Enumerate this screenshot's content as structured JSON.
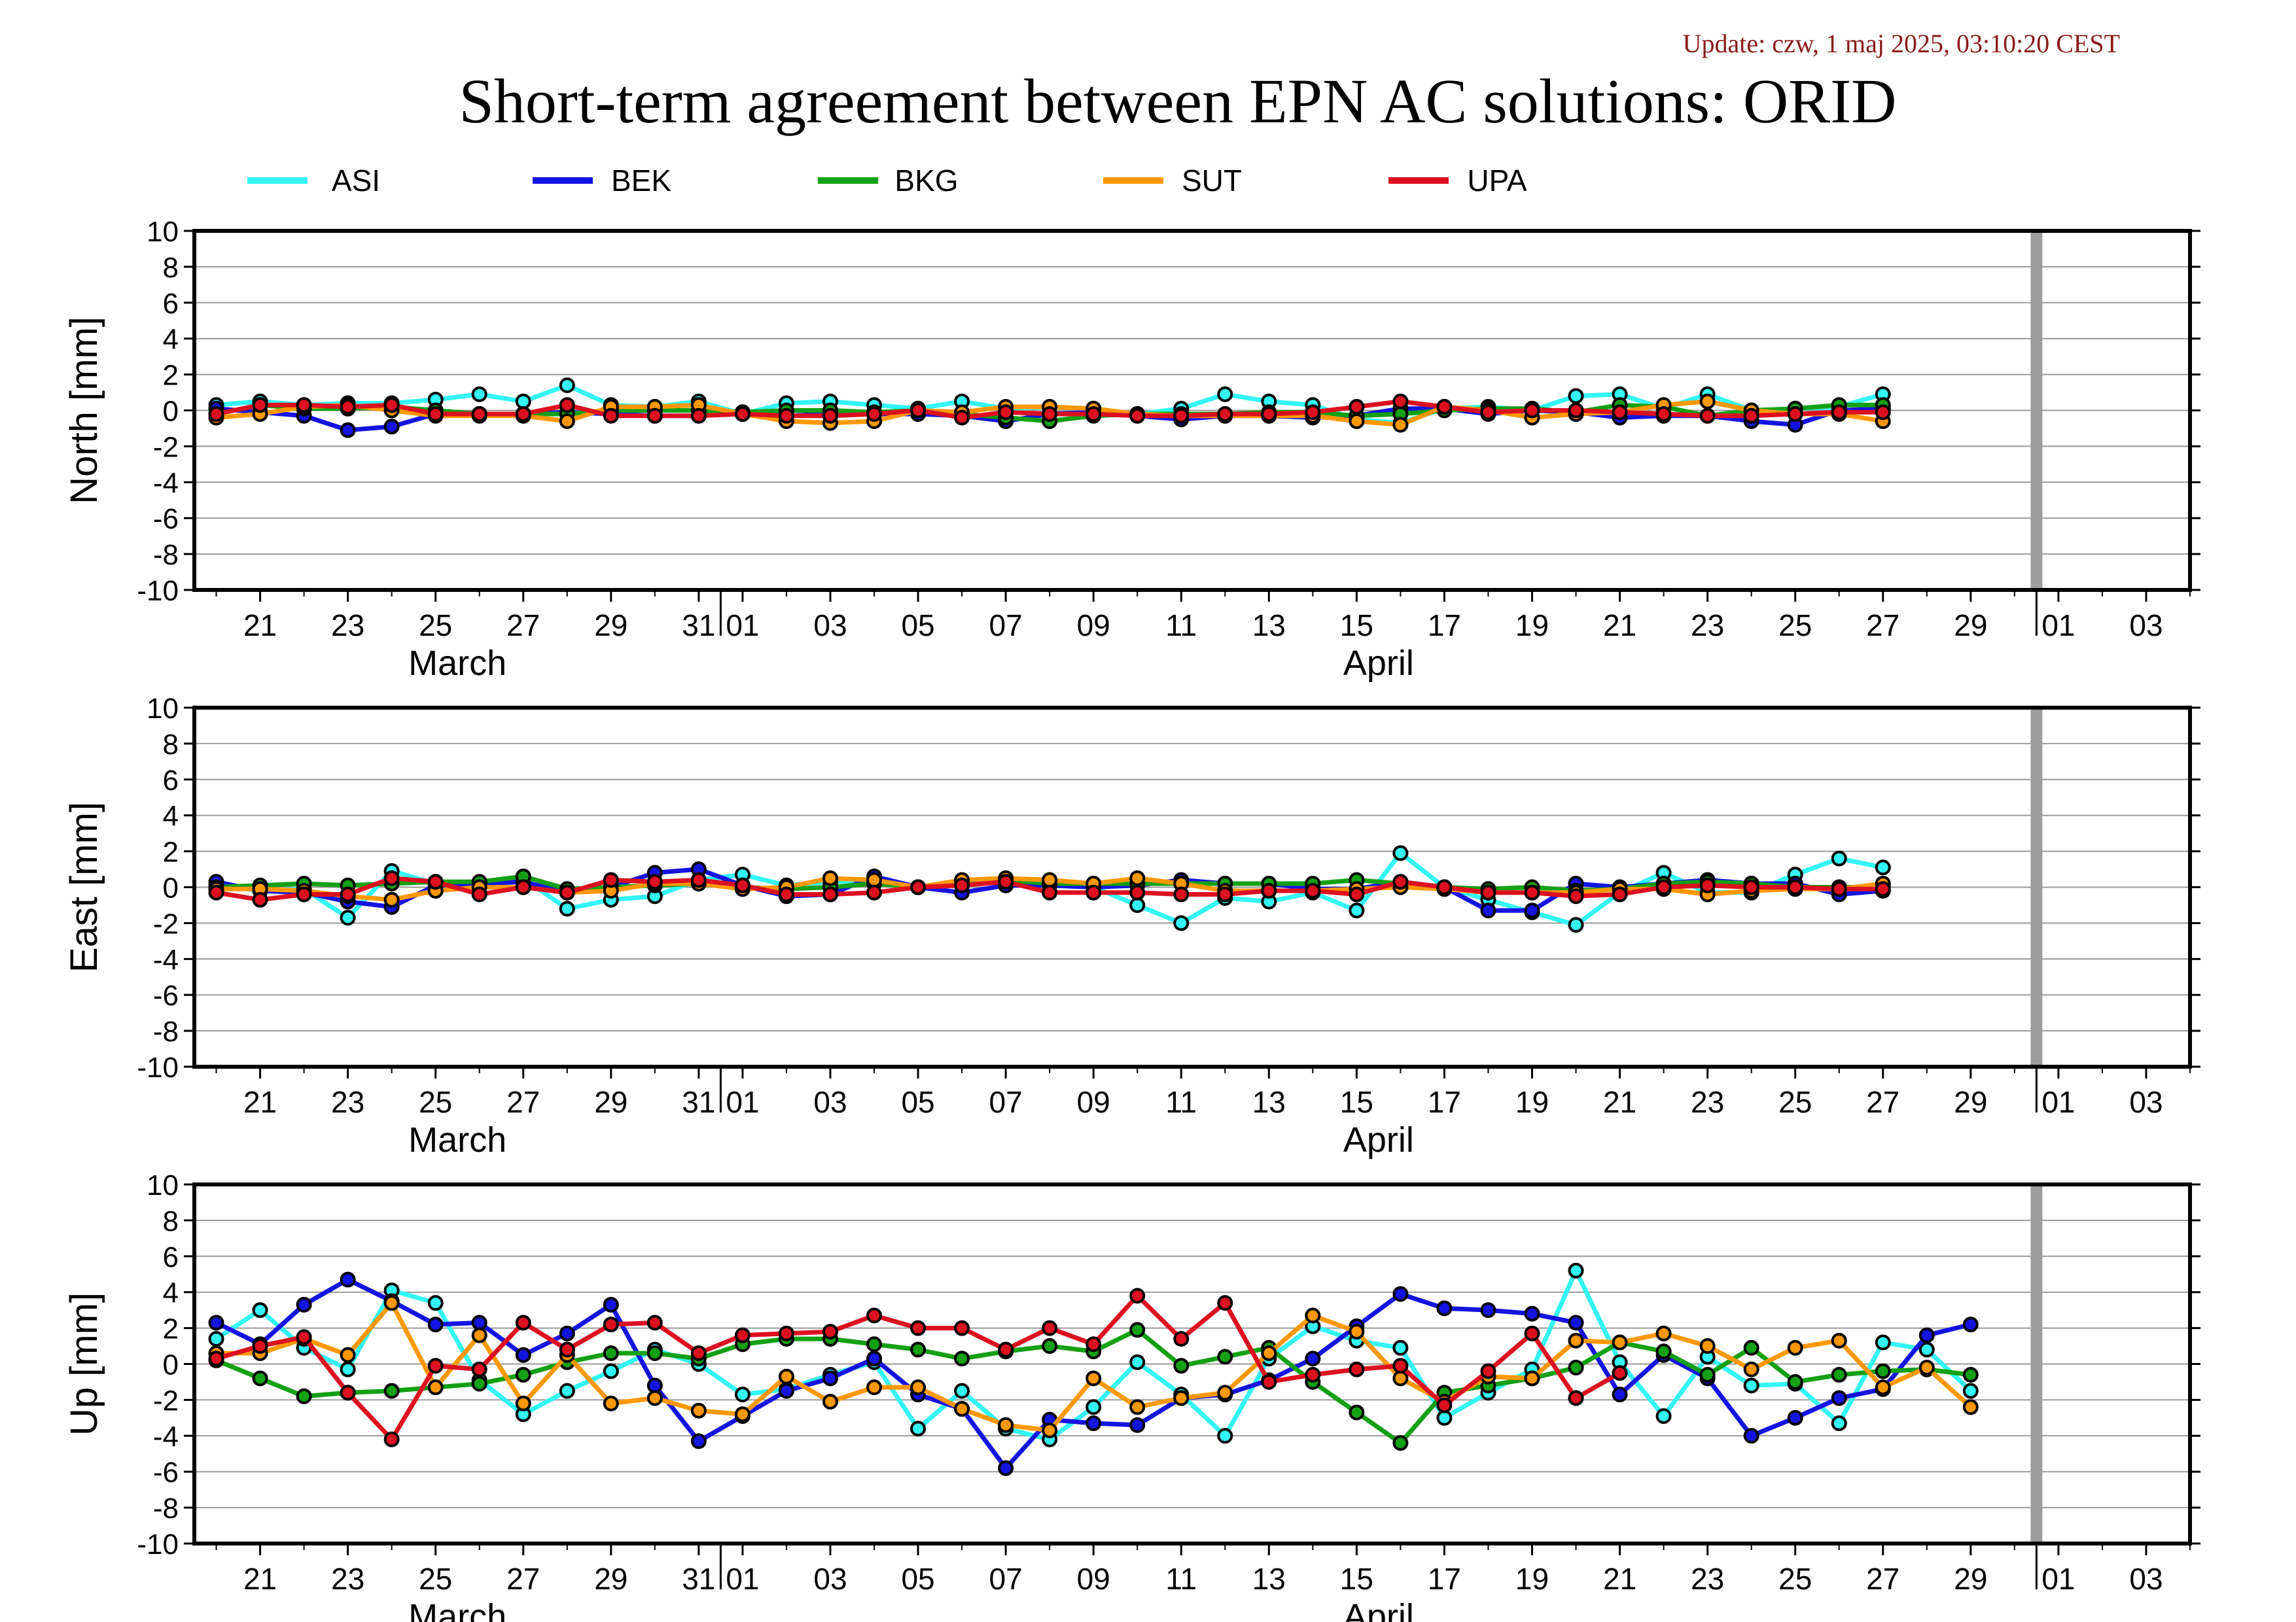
{
  "header": {
    "update": "Update: czw, 1 maj 2025, 03:10:20 CEST",
    "title": "Short-term agreement between EPN AC solutions: ORID"
  },
  "colors": {
    "ASI": "#33f5f5",
    "BEK": "#1414e0",
    "BKG": "#14a014",
    "SUT": "#ff9800",
    "UPA": "#dc1020",
    "update_text": "#8b1a1a",
    "marker_edge": "#000000",
    "today_marker": "#9e9e9e"
  },
  "legend": [
    {
      "name": "ASI",
      "color": "#33f5f5"
    },
    {
      "name": "BEK",
      "color": "#1414e0"
    },
    {
      "name": "BKG",
      "color": "#14a014"
    },
    {
      "name": "SUT",
      "color": "#ff9800"
    },
    {
      "name": "UPA",
      "color": "#dc1020"
    }
  ],
  "chart_data": [
    {
      "type": "line",
      "ylabel": "North [mm]",
      "ylim": [
        -10,
        10
      ],
      "yticks": [
        10,
        8,
        6,
        4,
        2,
        0,
        -2,
        -4,
        -6,
        -8,
        -10
      ],
      "xlim": [
        "2025-03-19T12:00",
        "2025-05-04T00:00"
      ],
      "x_tick_labels": [
        "21",
        "23",
        "25",
        "27",
        "29",
        "31",
        "01",
        "03",
        "05",
        "07",
        "09",
        "11",
        "13",
        "15",
        "17",
        "19",
        "21",
        "23",
        "25",
        "27",
        "29",
        "01",
        "03"
      ],
      "month_labels": [
        "March",
        "April"
      ],
      "today_marker": "2025-04-30",
      "grid": true,
      "series": [
        {
          "name": "ASI",
          "x_start": "2025-03-20",
          "values": [
            0.3,
            0.5,
            0.3,
            0.4,
            0.4,
            0.6,
            0.9,
            0.5,
            1.4,
            0.3,
            0.2,
            0.5,
            -0.2,
            0.4,
            0.5,
            0.3,
            0.1,
            0.5,
            0.1,
            0.2,
            0.1,
            -0.2,
            0.1,
            0.9,
            0.5,
            0.3,
            -0.5,
            -0.7,
            0.1,
            0.2,
            0.0,
            0.8,
            0.9,
            0.1,
            0.9,
            0.0,
            0.1,
            0.2,
            0.9
          ]
        },
        {
          "name": "BEK",
          "x_start": "2025-03-20",
          "values": [
            0.1,
            -0.1,
            -0.3,
            -1.1,
            -0.9,
            -0.2,
            -0.2,
            -0.2,
            -0.1,
            -0.2,
            -0.3,
            -0.3,
            -0.1,
            -0.3,
            -0.2,
            -0.2,
            -0.2,
            -0.3,
            -0.6,
            -0.2,
            -0.1,
            -0.3,
            -0.5,
            -0.3,
            -0.3,
            -0.4,
            -0.3,
            0.1,
            0.1,
            -0.2,
            0.0,
            -0.1,
            -0.4,
            -0.3,
            -0.3,
            -0.6,
            -0.8,
            0.0,
            0.1
          ]
        },
        {
          "name": "BKG",
          "x_start": "2025-03-20",
          "values": [
            -0.2,
            0.3,
            0.1,
            0.1,
            0.2,
            0.0,
            -0.2,
            -0.2,
            -0.2,
            0.0,
            0.0,
            0.0,
            -0.1,
            0.0,
            0.0,
            -0.1,
            0.0,
            -0.2,
            -0.4,
            -0.6,
            -0.3,
            -0.2,
            -0.2,
            -0.2,
            -0.1,
            -0.1,
            -0.3,
            -0.2,
            0.0,
            0.1,
            0.1,
            -0.1,
            0.3,
            0.2,
            -0.3,
            0.0,
            0.1,
            0.3,
            0.3
          ]
        },
        {
          "name": "SUT",
          "x_start": "2025-03-20",
          "values": [
            -0.4,
            -0.2,
            0.2,
            0.3,
            0.0,
            -0.3,
            -0.3,
            -0.3,
            -0.6,
            0.2,
            0.2,
            0.3,
            -0.2,
            -0.6,
            -0.7,
            -0.6,
            0.0,
            -0.1,
            0.2,
            0.2,
            0.1,
            -0.2,
            -0.3,
            -0.3,
            -0.3,
            -0.3,
            -0.6,
            -0.8,
            0.2,
            0.0,
            -0.4,
            -0.2,
            -0.1,
            0.3,
            0.5,
            0.0,
            -0.2,
            -0.2,
            -0.6
          ]
        },
        {
          "name": "UPA",
          "x_start": "2025-03-20",
          "values": [
            -0.2,
            0.3,
            0.3,
            0.2,
            0.3,
            -0.2,
            -0.2,
            -0.2,
            0.3,
            -0.3,
            -0.3,
            -0.3,
            -0.2,
            -0.3,
            -0.3,
            -0.2,
            0.0,
            -0.4,
            -0.1,
            -0.2,
            -0.2,
            -0.3,
            -0.3,
            -0.2,
            -0.2,
            -0.1,
            0.2,
            0.5,
            0.2,
            -0.1,
            0.0,
            0.0,
            -0.1,
            -0.2,
            -0.3,
            -0.3,
            -0.2,
            -0.1,
            -0.1
          ]
        }
      ]
    },
    {
      "type": "line",
      "ylabel": "East [mm]",
      "ylim": [
        -10,
        10
      ],
      "yticks": [
        10,
        8,
        6,
        4,
        2,
        0,
        -2,
        -4,
        -6,
        -8,
        -10
      ],
      "xlim": [
        "2025-03-19T12:00",
        "2025-05-04T00:00"
      ],
      "x_tick_labels": [
        "21",
        "23",
        "25",
        "27",
        "29",
        "31",
        "01",
        "03",
        "05",
        "07",
        "09",
        "11",
        "13",
        "15",
        "17",
        "19",
        "21",
        "23",
        "25",
        "27",
        "29",
        "01",
        "03"
      ],
      "month_labels": [
        "March",
        "April"
      ],
      "today_marker": "2025-04-30",
      "grid": true,
      "series": [
        {
          "name": "ASI",
          "x_start": "2025-03-20",
          "values": [
            0.1,
            -0.2,
            -0.1,
            -1.7,
            0.9,
            0.2,
            0.2,
            0.5,
            -1.2,
            -0.7,
            -0.5,
            0.4,
            0.7,
            0.1,
            0.3,
            0.4,
            0.0,
            0.2,
            0.3,
            0.2,
            0.0,
            -1.0,
            -2.0,
            -0.6,
            -0.8,
            -0.3,
            -1.3,
            1.9,
            0.0,
            -0.7,
            -1.4,
            -2.1,
            -0.3,
            0.8,
            -0.3,
            -0.3,
            0.7,
            1.6,
            1.1
          ]
        },
        {
          "name": "BEK",
          "x_start": "2025-03-20",
          "values": [
            0.3,
            -0.2,
            -0.3,
            -0.8,
            -1.1,
            0.1,
            0.2,
            0.3,
            -0.3,
            0.0,
            0.8,
            1.0,
            0.1,
            -0.5,
            -0.4,
            0.6,
            0.0,
            -0.3,
            0.1,
            0.1,
            0.0,
            0.1,
            0.4,
            0.2,
            0.2,
            -0.1,
            -0.1,
            0.3,
            0.0,
            -1.3,
            -1.3,
            0.2,
            0.0,
            0.2,
            0.4,
            0.2,
            0.2,
            -0.4,
            -0.2
          ]
        },
        {
          "name": "BKG",
          "x_start": "2025-03-20",
          "values": [
            0.0,
            0.1,
            0.2,
            0.1,
            0.2,
            0.3,
            0.3,
            0.6,
            -0.1,
            0.0,
            0.1,
            0.2,
            0.0,
            -0.1,
            0.0,
            0.2,
            0.0,
            0.2,
            0.4,
            0.2,
            0.2,
            0.2,
            0.2,
            0.2,
            0.2,
            0.2,
            0.4,
            0.2,
            0.0,
            -0.1,
            0.0,
            -0.2,
            -0.1,
            0.2,
            0.3,
            0.2,
            0.0,
            0.0,
            0.0
          ]
        },
        {
          "name": "SUT",
          "x_start": "2025-03-20",
          "values": [
            -0.1,
            -0.1,
            -0.2,
            -0.5,
            -0.7,
            -0.2,
            0.0,
            0.0,
            -0.3,
            -0.2,
            0.2,
            0.2,
            -0.1,
            0.0,
            0.5,
            0.4,
            0.0,
            0.4,
            0.5,
            0.4,
            0.2,
            0.5,
            0.2,
            -0.2,
            -0.2,
            -0.2,
            -0.1,
            0.0,
            -0.1,
            -0.3,
            -0.3,
            -0.3,
            -0.1,
            -0.1,
            -0.4,
            -0.2,
            -0.1,
            -0.1,
            0.2
          ]
        },
        {
          "name": "UPA",
          "x_start": "2025-03-20",
          "values": [
            -0.3,
            -0.7,
            -0.4,
            -0.4,
            0.5,
            0.3,
            -0.4,
            0.0,
            -0.3,
            0.4,
            0.3,
            0.4,
            0.1,
            -0.4,
            -0.4,
            -0.3,
            0.0,
            0.1,
            0.3,
            -0.3,
            -0.3,
            -0.3,
            -0.4,
            -0.4,
            -0.2,
            -0.2,
            -0.4,
            0.3,
            0.0,
            -0.3,
            -0.3,
            -0.5,
            -0.4,
            0.0,
            0.1,
            0.0,
            0.0,
            -0.1,
            -0.1
          ]
        }
      ]
    },
    {
      "type": "line",
      "ylabel": "Up [mm]",
      "ylim": [
        -10,
        10
      ],
      "yticks": [
        10,
        8,
        6,
        4,
        2,
        0,
        -2,
        -4,
        -6,
        -8,
        -10
      ],
      "xlim": [
        "2025-03-19T12:00",
        "2025-05-04T00:00"
      ],
      "x_tick_labels": [
        "21",
        "23",
        "25",
        "27",
        "29",
        "31",
        "01",
        "03",
        "05",
        "07",
        "09",
        "11",
        "13",
        "15",
        "17",
        "19",
        "21",
        "23",
        "25",
        "27",
        "29",
        "01",
        "03"
      ],
      "month_labels": [
        "March",
        "April"
      ],
      "today_marker": "2025-04-30",
      "grid": true,
      "series": [
        {
          "name": "ASI",
          "x_start": "2025-03-20",
          "values": [
            1.4,
            3.0,
            0.9,
            -0.3,
            4.1,
            3.4,
            -0.9,
            -2.8,
            -1.5,
            -0.4,
            0.8,
            0.0,
            -1.7,
            -1.4,
            -0.6,
            0.1,
            -3.6,
            -1.5,
            -3.6,
            -4.2,
            -2.4,
            0.1,
            -1.7,
            -4.0,
            0.3,
            2.1,
            1.3,
            0.9,
            -3.0,
            -1.6,
            -0.3,
            5.2,
            0.1,
            -2.9,
            0.4,
            -1.2,
            -1.1,
            -3.3,
            1.2,
            0.8,
            -1.5
          ]
        },
        {
          "name": "BEK",
          "x_start": "2025-03-20",
          "values": [
            2.3,
            1.1,
            3.3,
            4.7,
            3.5,
            2.2,
            2.3,
            0.5,
            1.7,
            3.3,
            -1.2,
            -4.3,
            -2.9,
            -1.5,
            -0.8,
            0.3,
            -1.7,
            -2.5,
            -5.8,
            -3.1,
            -3.3,
            -3.4,
            -1.9,
            -1.7,
            -0.9,
            0.3,
            2.1,
            3.9,
            3.1,
            3.0,
            2.8,
            2.3,
            -1.7,
            0.5,
            -0.8,
            -4.0,
            -3.0,
            -1.9,
            -1.4,
            1.6,
            2.2
          ]
        },
        {
          "name": "BKG",
          "x_start": "2025-03-20",
          "values": [
            0.2,
            -0.8,
            -1.8,
            -1.6,
            -1.5,
            -1.3,
            -1.1,
            -0.6,
            0.1,
            0.6,
            0.6,
            0.3,
            1.1,
            1.4,
            1.4,
            1.1,
            0.8,
            0.3,
            0.7,
            1.0,
            0.7,
            1.9,
            -0.1,
            0.4,
            0.9,
            -1.0,
            -2.7,
            -4.4,
            -1.6,
            -1.2,
            -0.8,
            -0.2,
            1.2,
            0.7,
            -0.6,
            0.9,
            -1.0,
            -0.6,
            -0.4,
            -0.3,
            -0.6
          ]
        },
        {
          "name": "SUT",
          "x_start": "2025-03-20",
          "values": [
            0.6,
            0.6,
            1.4,
            0.5,
            3.4,
            -1.3,
            1.6,
            -2.2,
            0.5,
            -2.2,
            -1.9,
            -2.6,
            -2.8,
            -0.7,
            -2.1,
            -1.3,
            -1.3,
            -2.5,
            -3.4,
            -3.7,
            -0.8,
            -2.4,
            -1.9,
            -1.6,
            0.6,
            2.7,
            1.8,
            -0.8,
            -2.1,
            -0.7,
            -0.8,
            1.3,
            1.2,
            1.7,
            1.0,
            -0.3,
            0.9,
            1.3,
            -1.3,
            -0.2,
            -2.4
          ]
        },
        {
          "name": "UPA",
          "x_start": "2025-03-20",
          "values": [
            0.3,
            1.0,
            1.5,
            -1.6,
            -4.2,
            -0.1,
            -0.3,
            2.3,
            0.8,
            2.2,
            2.3,
            0.6,
            1.6,
            1.7,
            1.8,
            2.7,
            2.0,
            2.0,
            0.8,
            2.0,
            1.1,
            3.8,
            1.4,
            3.4,
            -1.0,
            -0.6,
            -0.3,
            -0.1,
            -2.3,
            -0.4,
            1.7,
            -1.9,
            -0.5,
            null,
            null,
            null,
            null,
            null,
            null,
            null,
            null
          ]
        }
      ]
    }
  ]
}
